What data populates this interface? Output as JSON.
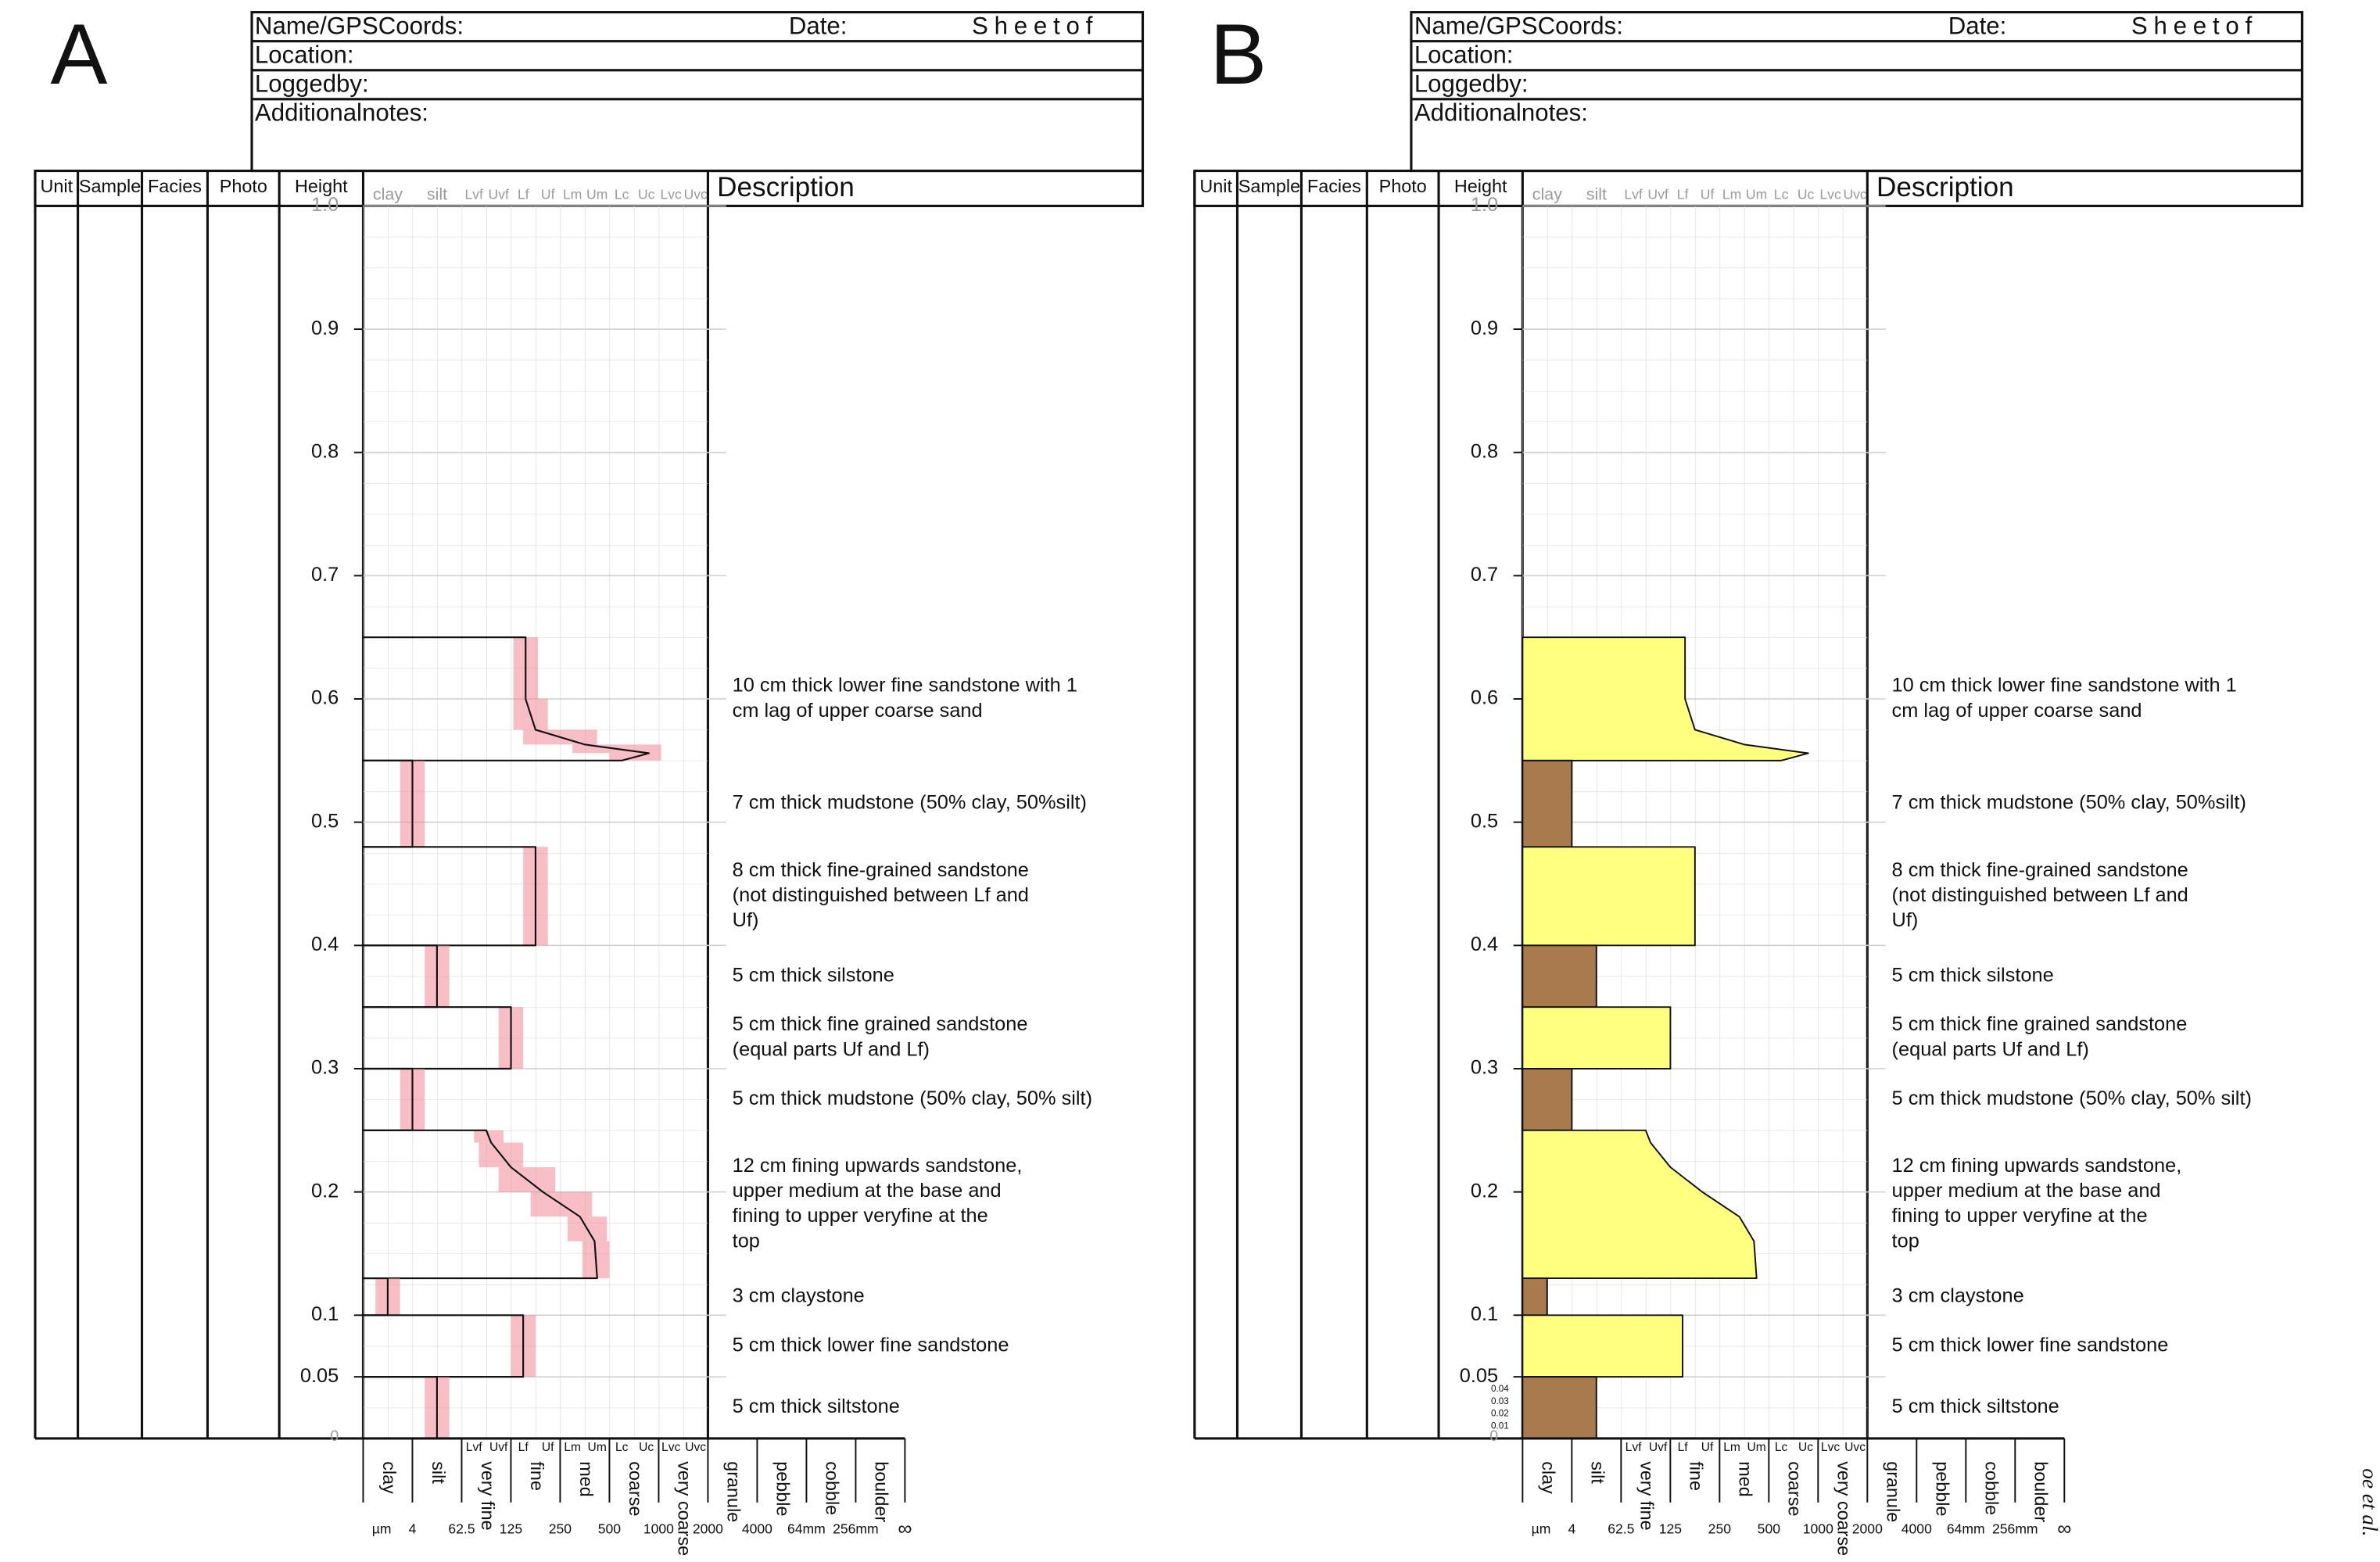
{
  "panels": [
    {
      "label": "A",
      "style": "bars"
    },
    {
      "label": "B",
      "style": "filled",
      "fine_ticks": [
        0.01,
        0.02,
        0.03,
        0.04
      ]
    }
  ],
  "log_sheet": {
    "header": {
      "name": "Name/GPSCoords:",
      "date": "Date:",
      "sheet": "Sheetof",
      "location": "Location:",
      "logged_by": "Loggedby:",
      "notes": "Additionalnotes:"
    },
    "columns": [
      "Unit",
      "Sample",
      "Facies",
      "Photo",
      "Height"
    ],
    "description_header": "Description",
    "height_lim": [
      0,
      1
    ],
    "height_ticks": [
      0,
      0.05,
      0.1,
      0.2,
      0.3,
      0.4,
      0.5,
      0.6,
      0.7,
      0.8,
      0.9,
      {
        "value": 1,
        "label": "1.0"
      }
    ],
    "grain_lim": [
      0,
      14
    ],
    "grain_header": [
      "clay",
      "silt",
      "Lvf",
      "Uvf",
      "Lf",
      "Uf",
      "Lm",
      "Um",
      "Lc",
      "Uc",
      "Lvc",
      "Uvc"
    ],
    "grain_classes": [
      "clay",
      "silt",
      "very fine",
      "fine",
      "med",
      "coarse",
      "very coarse",
      "granule",
      "pebble",
      "cobble",
      "boulder"
    ],
    "grain_size_unit": "µm",
    "grain_size_ticks": [
      {
        "value": 2,
        "label": "4"
      },
      {
        "value": 4,
        "label": "62.5"
      },
      {
        "value": 6,
        "label": "125"
      },
      {
        "value": 8,
        "label": "250"
      },
      {
        "value": 10,
        "label": "500"
      },
      {
        "value": 12,
        "label": "1000"
      },
      {
        "value": 14,
        "label": "2000"
      },
      {
        "value": 16,
        "label": "4000"
      },
      {
        "value": 18,
        "label": "64mm"
      },
      {
        "value": 20,
        "label": "256mm"
      },
      {
        "value": 22,
        "label": "∞"
      }
    ],
    "lithology_colors": {
      "sand": "#ffff80",
      "mud": "#a97a4e"
    },
    "bar_color": "#f08a96",
    "beds": [
      {
        "base": 0.55,
        "top": 0.65,
        "lithology": "sand",
        "profile": [
          [
            0.55,
            10.5
          ],
          [
            0.556,
            11.6
          ],
          [
            0.563,
            9
          ],
          [
            0.575,
            7
          ],
          [
            0.6,
            6.6
          ],
          [
            0.65,
            6.6
          ]
        ],
        "description": [
          "10 cm thick lower fine sandstone with 1",
          "cm lag of upper coarse sand"
        ]
      },
      {
        "base": 0.48,
        "top": 0.55,
        "lithology": "mud",
        "profile": [
          [
            0.48,
            2
          ],
          [
            0.55,
            2
          ]
        ],
        "description": [
          "7 cm thick mudstone (50% clay, 50%silt)"
        ]
      },
      {
        "base": 0.4,
        "top": 0.48,
        "lithology": "sand",
        "profile": [
          [
            0.4,
            7
          ],
          [
            0.48,
            7
          ]
        ],
        "description": [
          "8 cm thick fine-grained sandstone",
          "(not distinguished between Lf and",
          "Uf)"
        ]
      },
      {
        "base": 0.35,
        "top": 0.4,
        "lithology": "mud",
        "profile": [
          [
            0.35,
            3
          ],
          [
            0.4,
            3
          ]
        ],
        "description": [
          "5 cm thick silstone"
        ]
      },
      {
        "base": 0.3,
        "top": 0.35,
        "lithology": "sand",
        "profile": [
          [
            0.3,
            6
          ],
          [
            0.35,
            6
          ]
        ],
        "description": [
          "5 cm thick fine grained sandstone",
          "(equal parts Uf and Lf)"
        ]
      },
      {
        "base": 0.25,
        "top": 0.3,
        "lithology": "mud",
        "profile": [
          [
            0.25,
            2
          ],
          [
            0.3,
            2
          ]
        ],
        "description": [
          "5 cm thick mudstone (50% clay, 50% silt)"
        ]
      },
      {
        "base": 0.13,
        "top": 0.25,
        "lithology": "sand",
        "profile": [
          [
            0.13,
            9.5
          ],
          [
            0.16,
            9.4
          ],
          [
            0.18,
            8.8
          ],
          [
            0.2,
            7.3
          ],
          [
            0.22,
            6
          ],
          [
            0.24,
            5.2
          ],
          [
            0.25,
            5
          ]
        ],
        "description": [
          "12 cm fining upwards sandstone,",
          "upper medium at the base and",
          "fining to upper veryfine at the",
          "top"
        ]
      },
      {
        "base": 0.1,
        "top": 0.13,
        "lithology": "mud",
        "profile": [
          [
            0.1,
            1
          ],
          [
            0.13,
            1
          ]
        ],
        "description": [
          "3 cm claystone"
        ]
      },
      {
        "base": 0.05,
        "top": 0.1,
        "lithology": "sand",
        "profile": [
          [
            0.05,
            6.5
          ],
          [
            0.1,
            6.5
          ]
        ],
        "description": [
          "5 cm thick lower fine sandstone"
        ]
      },
      {
        "base": 0,
        "top": 0.05,
        "lithology": "mud",
        "profile": [
          [
            0,
            3
          ],
          [
            0.05,
            3
          ]
        ],
        "description": [
          "5 cm thick siltstone"
        ]
      }
    ]
  },
  "margin_text": "oe et al."
}
